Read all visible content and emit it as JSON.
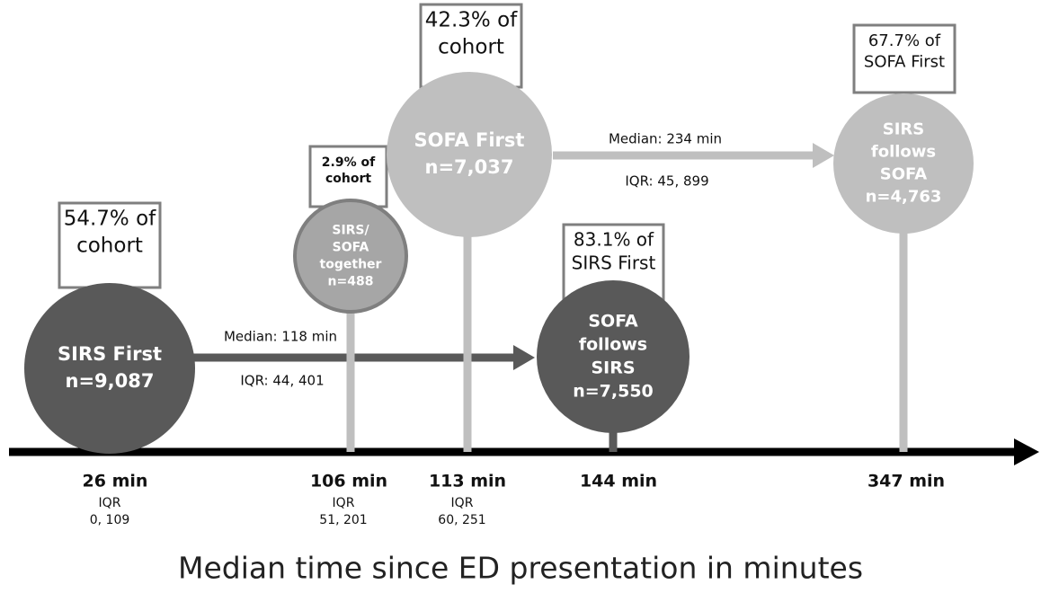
{
  "nodes": [
    {
      "circle": [
        "SIRS First",
        "n=9,087"
      ],
      "box": [
        "54.7% of",
        "cohort"
      ],
      "time": "26 min",
      "iqr": [
        "IQR",
        "0, 109"
      ]
    },
    {
      "circle": [
        "SIRS/",
        "SOFA",
        "together",
        "n=488"
      ],
      "box": [
        "2.9% of",
        "cohort"
      ],
      "time": "106 min",
      "iqr": [
        "IQR",
        "51, 201"
      ]
    },
    {
      "circle": [
        "SOFA First",
        "n=7,037"
      ],
      "box": [
        "42.3% of",
        "cohort"
      ],
      "time": "113 min",
      "iqr": [
        "IQR",
        "60, 251"
      ]
    },
    {
      "circle": [
        "SOFA",
        "follows",
        "SIRS",
        "n=7,550"
      ],
      "box": [
        "83.1% of",
        "SIRS First"
      ],
      "time": "144 min",
      "iqr": []
    },
    {
      "circle": [
        "SIRS",
        "follows",
        "SOFA",
        "n=4,763"
      ],
      "box": [
        "67.7% of",
        "SOFA First"
      ],
      "time": "347 min",
      "iqr": []
    }
  ],
  "arrows": [
    {
      "median": "Median: 118 min",
      "iqr": "IQR: 44, 401"
    },
    {
      "median": "Median: 234 min",
      "iqr": "IQR: 45, 899"
    }
  ],
  "axis_label": "Median time since ED presentation in minutes"
}
